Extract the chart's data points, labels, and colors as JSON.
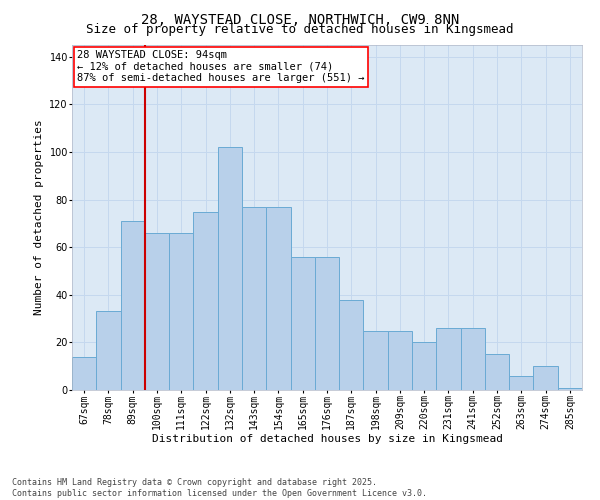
{
  "title1": "28, WAYSTEAD CLOSE, NORTHWICH, CW9 8NN",
  "title2": "Size of property relative to detached houses in Kingsmead",
  "xlabel": "Distribution of detached houses by size in Kingsmead",
  "ylabel": "Number of detached properties",
  "categories": [
    "67sqm",
    "78sqm",
    "89sqm",
    "100sqm",
    "111sqm",
    "122sqm",
    "132sqm",
    "143sqm",
    "154sqm",
    "165sqm",
    "176sqm",
    "187sqm",
    "198sqm",
    "209sqm",
    "220sqm",
    "231sqm",
    "241sqm",
    "252sqm",
    "263sqm",
    "274sqm",
    "285sqm"
  ],
  "bar_heights": [
    14,
    33,
    71,
    66,
    66,
    75,
    102,
    77,
    77,
    56,
    56,
    38,
    25,
    25,
    20,
    26,
    26,
    15,
    6,
    10,
    1
  ],
  "bar_color": "#b8d0ea",
  "bar_edge_color": "#6aaad4",
  "vline_index": 2.5,
  "vline_color": "#cc0000",
  "annotation_title": "28 WAYSTEAD CLOSE: 94sqm",
  "annotation_line1": "← 12% of detached houses are smaller (74)",
  "annotation_line2": "87% of semi-detached houses are larger (551) →",
  "ylim": [
    0,
    145
  ],
  "yticks": [
    0,
    20,
    40,
    60,
    80,
    100,
    120,
    140
  ],
  "grid_color": "#c5d8ee",
  "bg_color": "#dce9f5",
  "footer": "Contains HM Land Registry data © Crown copyright and database right 2025.\nContains public sector information licensed under the Open Government Licence v3.0.",
  "title_fontsize": 10,
  "subtitle_fontsize": 9,
  "axis_label_fontsize": 8,
  "tick_fontsize": 7,
  "annotation_fontsize": 7.5,
  "footer_fontsize": 6
}
